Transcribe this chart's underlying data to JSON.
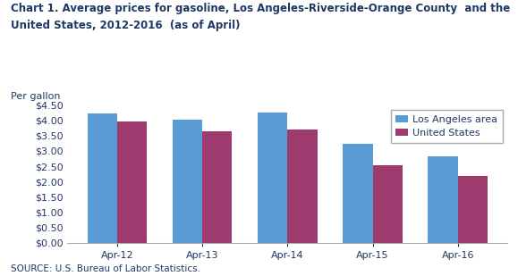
{
  "title_line1": "Chart 1. Average prices for gasoline, Los Angeles-Riverside-Orange County  and the",
  "title_line2": "United States, 2012-2016  (as of April)",
  "ylabel_above": "Per gallon",
  "source": "SOURCE: U.S. Bureau of Labor Statistics.",
  "categories": [
    "Apr-12",
    "Apr-13",
    "Apr-14",
    "Apr-15",
    "Apr-16"
  ],
  "la_values": [
    4.22,
    4.02,
    4.25,
    3.24,
    2.82
  ],
  "us_values": [
    3.97,
    3.63,
    3.7,
    2.54,
    2.18
  ],
  "la_color": "#5B9BD5",
  "us_color": "#9E3A6E",
  "ylim": [
    0,
    4.5
  ],
  "yticks": [
    0.0,
    0.5,
    1.0,
    1.5,
    2.0,
    2.5,
    3.0,
    3.5,
    4.0,
    4.5
  ],
  "legend_la": "Los Angeles area",
  "legend_us": "United States",
  "bar_width": 0.35,
  "title_fontsize": 8.5,
  "axis_label_fontsize": 8,
  "tick_fontsize": 8,
  "legend_fontsize": 8,
  "source_fontsize": 7.5,
  "background_color": "#FFFFFF",
  "title_color": "#1F3864",
  "tick_color": "#1F3864",
  "source_color": "#1F3864"
}
